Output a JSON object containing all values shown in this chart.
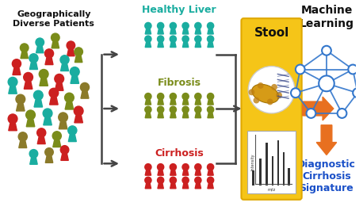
{
  "background_color": "#ffffff",
  "text_geo": "Geographically\nDiverse Patients",
  "text_healthy": "Healthy Liver",
  "text_fibrosis": "Fibrosis",
  "text_cirrhosis": "Cirrhosis",
  "text_stool": "Stool",
  "text_ml": "Machine\nLearning",
  "text_diag": "Diagnostic\nCirrhosis\nSignature",
  "color_healthy": "#1aada0",
  "color_fibrosis": "#7a8c1a",
  "color_cirrhosis": "#cc2020",
  "color_stool_bg": "#f5c518",
  "color_stool_border": "#e0a800",
  "color_arrow_dark": "#444444",
  "color_arrow_orange": "#e87020",
  "color_diag_text": "#1a50c8",
  "color_ml_text": "#111111",
  "color_geo_text": "#111111",
  "crowd_colors": [
    "#1aada0",
    "#7a8c1a",
    "#cc2020",
    "#8b7a2a",
    "#5ab0a0"
  ],
  "figsize": [
    4.58,
    2.75
  ],
  "dpi": 100
}
